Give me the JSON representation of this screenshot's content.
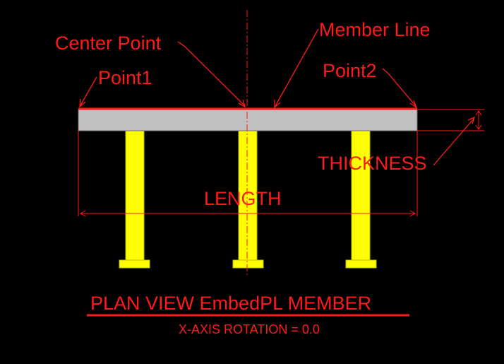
{
  "labels": {
    "center_point": "Center Point",
    "member_line": "Member Line",
    "point1": "Point1",
    "point2": "Point2",
    "thickness": "THICKNESS",
    "length": "LENGTH"
  },
  "caption": {
    "title": "PLAN VIEW EmbedPL MEMBER",
    "subtitle": "X-AXIS ROTATION = 0.0"
  },
  "colors": {
    "background": "#000000",
    "annotation": "#ff1a1a",
    "plate": "#c0c0c0",
    "stud": "#ffff00",
    "centerline": "#ff1a1a"
  }
}
